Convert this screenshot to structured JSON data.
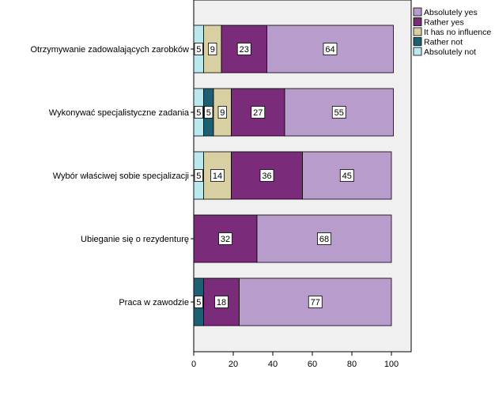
{
  "chart_data": {
    "type": "bar",
    "orientation": "horizontal",
    "stacked": true,
    "categories": [
      "Otrzymywanie zadowalających zarobków",
      "Wykonywać specjalistyczne zadania",
      "Wybór właściwej sobie specjalizacji",
      "Ubieganie się o rezydenturę",
      "Praca w zawodzie"
    ],
    "series": [
      {
        "name": "Absolutely not",
        "color": "#b9e8ef",
        "values": [
          5,
          5,
          5,
          0,
          0
        ]
      },
      {
        "name": "Rather not",
        "color": "#1f5f72",
        "values": [
          0,
          5,
          0,
          0,
          5
        ]
      },
      {
        "name": "It has no influence",
        "color": "#d8d0a2",
        "values": [
          9,
          9,
          14,
          0,
          0
        ]
      },
      {
        "name": "Rather yes",
        "color": "#7a2b7a",
        "values": [
          23,
          27,
          36,
          32,
          18
        ]
      },
      {
        "name": "Absolutely yes",
        "color": "#b79ccc",
        "values": [
          64,
          55,
          45,
          68,
          77
        ]
      }
    ],
    "data_labels": [
      [
        "5",
        "",
        "9",
        "23",
        "64"
      ],
      [
        "5",
        "5",
        "9",
        "27",
        "55"
      ],
      [
        "5",
        "",
        "14",
        "36",
        "45"
      ],
      [
        "",
        "",
        "",
        "32",
        "68"
      ],
      [
        "",
        "5",
        "",
        "18",
        "77"
      ]
    ],
    "legend_order": [
      "Absolutely yes",
      "Rather yes",
      "It has no influence",
      "Rather not",
      "Absolutely not"
    ],
    "xlim": [
      0,
      110
    ],
    "xticks": [
      "0",
      "20",
      "40",
      "60",
      "80",
      "100"
    ],
    "tick_values": [
      0,
      20,
      40,
      60,
      80,
      100
    ],
    "title": "",
    "xlabel": "",
    "ylabel": "",
    "grid": false,
    "legend_position": "top-right",
    "plot_background": "#f0f0f0"
  }
}
